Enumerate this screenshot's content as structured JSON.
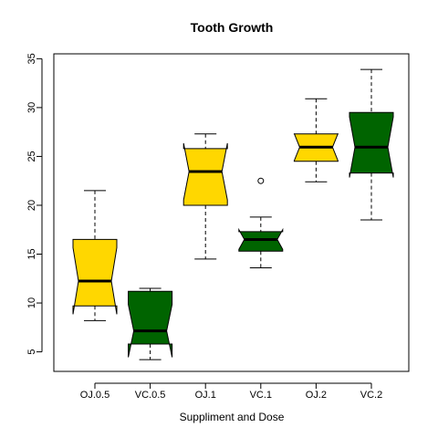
{
  "chart_data": {
    "type": "boxplot",
    "notched": true,
    "title": "Tooth Growth",
    "xlabel": "Suppliment and Dose",
    "ylabel": "",
    "ylim": [
      3,
      35.5
    ],
    "yticks": [
      5,
      10,
      15,
      20,
      25,
      30,
      35
    ],
    "categories": [
      "OJ.0.5",
      "VC.0.5",
      "OJ.1",
      "VC.1",
      "OJ.2",
      "VC.2"
    ],
    "colors": {
      "gold": "#FFD700",
      "darkgreen": "#006400"
    },
    "boxes": [
      {
        "label": "OJ.0.5",
        "fill": "#FFD700",
        "min": 8.2,
        "q1": 9.7,
        "median": 12.25,
        "q3": 16.5,
        "max": 21.5,
        "notch_low": 8.85,
        "notch_high": 15.65,
        "outliers": []
      },
      {
        "label": "VC.0.5",
        "fill": "#006400",
        "min": 4.2,
        "q1": 5.8,
        "median": 7.15,
        "q3": 11.2,
        "max": 11.5,
        "notch_low": 4.45,
        "notch_high": 9.85,
        "outliers": []
      },
      {
        "label": "OJ.1",
        "fill": "#FFD700",
        "min": 14.5,
        "q1": 20.0,
        "median": 23.45,
        "q3": 25.8,
        "max": 27.3,
        "notch_low": 20.55,
        "notch_high": 26.35,
        "outliers": []
      },
      {
        "label": "VC.1",
        "fill": "#006400",
        "min": 13.6,
        "q1": 15.3,
        "median": 16.5,
        "q3": 17.3,
        "max": 18.8,
        "notch_low": 15.5,
        "notch_high": 17.5,
        "outliers": [
          22.5
        ]
      },
      {
        "label": "OJ.2",
        "fill": "#FFD700",
        "min": 22.4,
        "q1": 24.5,
        "median": 25.95,
        "q3": 27.3,
        "max": 30.9,
        "notch_low": 24.55,
        "notch_high": 27.35,
        "outliers": []
      },
      {
        "label": "VC.2",
        "fill": "#006400",
        "min": 18.5,
        "q1": 23.3,
        "median": 25.95,
        "q3": 29.5,
        "max": 33.9,
        "notch_low": 22.85,
        "notch_high": 29.05,
        "outliers": []
      }
    ]
  }
}
